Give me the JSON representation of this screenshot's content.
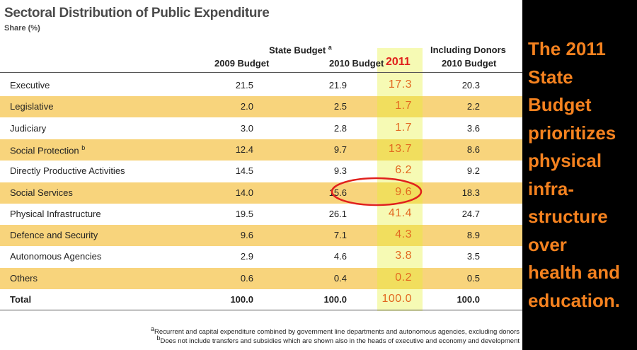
{
  "title": "Sectoral Distribution of Public Expenditure",
  "subtitle": "Share (%)",
  "header": {
    "group_state": {
      "text": "State Budget",
      "note": "a"
    },
    "group_donors": "Including Donors",
    "columns": [
      "2009 Budget",
      "2010 Budget",
      "2011",
      "2010 Budget"
    ]
  },
  "table": {
    "rows": [
      {
        "label": "Executive",
        "values": [
          "21.5",
          "21.9",
          "17.3",
          "20.3"
        ]
      },
      {
        "label": "Legislative",
        "values": [
          "2.0",
          "2.5",
          "1.7",
          "2.2"
        ]
      },
      {
        "label": "Judiciary",
        "values": [
          "3.0",
          "2.8",
          "1.7",
          "3.6"
        ]
      },
      {
        "label": "Social Protection",
        "note": "b",
        "values": [
          "12.4",
          "9.7",
          "13.7",
          "8.6"
        ]
      },
      {
        "label": "Directly Productive Activities",
        "values": [
          "14.5",
          "9.3",
          "6.2",
          "9.2"
        ]
      },
      {
        "label": "Social Services",
        "values": [
          "14.0",
          "15.6",
          "9.6",
          "18.3"
        ]
      },
      {
        "label": "Physical Infrastructure",
        "values": [
          "19.5",
          "26.1",
          "41.4",
          "24.7"
        ]
      },
      {
        "label": "Defence and Security",
        "values": [
          "9.6",
          "7.1",
          "4.3",
          "8.9"
        ]
      },
      {
        "label": "Autonomous Agencies",
        "values": [
          "2.9",
          "4.6",
          "3.8",
          "3.5"
        ]
      },
      {
        "label": "Others",
        "values": [
          "0.6",
          "0.4",
          "0.2",
          "0.5"
        ]
      },
      {
        "label": "Total",
        "values": [
          "100.0",
          "100.0",
          "100.0",
          "100.0"
        ]
      }
    ]
  },
  "footnotes": [
    {
      "marker": "a",
      "text": "Recurrent and capital expenditure combined by government line departments and autonomous agencies, excluding donors"
    },
    {
      "marker": "b",
      "text": "Does not include transfers and subsidies which are shown also in the heads of executive and economy and development"
    }
  ],
  "side_text": [
    "The 2011",
    "State",
    "Budget",
    "prioritizes",
    "physical",
    "infra-",
    "structure",
    "over",
    "health and",
    "education."
  ]
}
